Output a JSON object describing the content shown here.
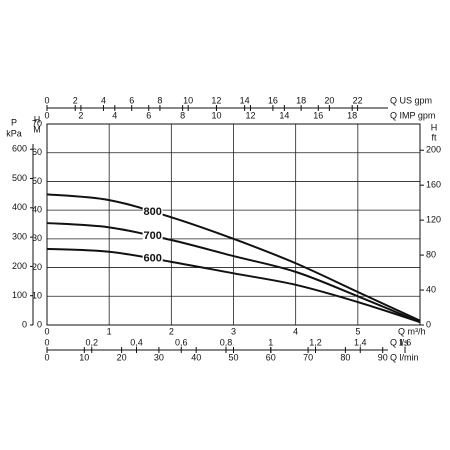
{
  "chart_data": {
    "type": "line",
    "x_label": "Q m³/h",
    "xlim": [
      0,
      6
    ],
    "xticks": [
      0,
      1,
      2,
      3,
      4,
      5
    ],
    "x": [
      0,
      1,
      2,
      3,
      4,
      5,
      6
    ],
    "series": [
      {
        "name": "800",
        "color": "#111111",
        "values": [
          45.5,
          43.5,
          37.5,
          30,
          21.5,
          11.5,
          1.5
        ]
      },
      {
        "name": "700",
        "color": "#111111",
        "values": [
          35.5,
          34,
          29.6,
          24,
          18.5,
          10,
          1
        ]
      },
      {
        "name": "600",
        "color": "#111111",
        "values": [
          26.5,
          25.5,
          22,
          18,
          14,
          8,
          1
        ]
      }
    ],
    "y_label": [
      "H",
      "M"
    ],
    "ylim": [
      0,
      70
    ],
    "yticks": [
      0,
      10,
      20,
      30,
      40,
      50,
      60,
      70
    ],
    "y2_label": [
      "H",
      "ft"
    ],
    "y2lim": [
      0,
      230
    ],
    "y2ticks": [
      0,
      40,
      80,
      120,
      160,
      200
    ],
    "y_outer": {
      "label": [
        "P",
        "kPa"
      ],
      "lim": [
        0,
        686
      ],
      "ticks": [
        0,
        100,
        200,
        300,
        400,
        500,
        600
      ]
    },
    "top_axes": [
      {
        "label": "Q US gpm",
        "lim": [
          0,
          26.42
        ],
        "ticks": [
          0,
          2,
          4,
          6,
          8,
          10,
          12,
          14,
          16,
          18,
          20,
          22
        ]
      },
      {
        "label": "Q IMP gpm",
        "lim": [
          0,
          22
        ],
        "ticks": [
          0,
          2,
          4,
          6,
          8,
          10,
          12,
          14,
          16,
          18
        ]
      }
    ],
    "bottom_axes": [
      {
        "label": "Q l/s",
        "lim": [
          0,
          1.667
        ],
        "ticks": [
          0,
          {
            "value": 0.2,
            "label": "0,2"
          },
          {
            "value": 0.4,
            "label": "0,4"
          },
          {
            "value": 0.6,
            "label": "0,6"
          },
          {
            "value": 0.8,
            "label": "0,8"
          },
          1,
          {
            "value": 1.2,
            "label": "1,2"
          },
          {
            "value": 1.4,
            "label": "1,4"
          },
          {
            "value": 1.6,
            "label": "1,6"
          }
        ]
      },
      {
        "label": "Q l/min",
        "lim": [
          0,
          100
        ],
        "ticks": [
          0,
          10,
          20,
          30,
          40,
          50,
          60,
          70,
          80,
          90
        ]
      }
    ],
    "grid": true
  }
}
